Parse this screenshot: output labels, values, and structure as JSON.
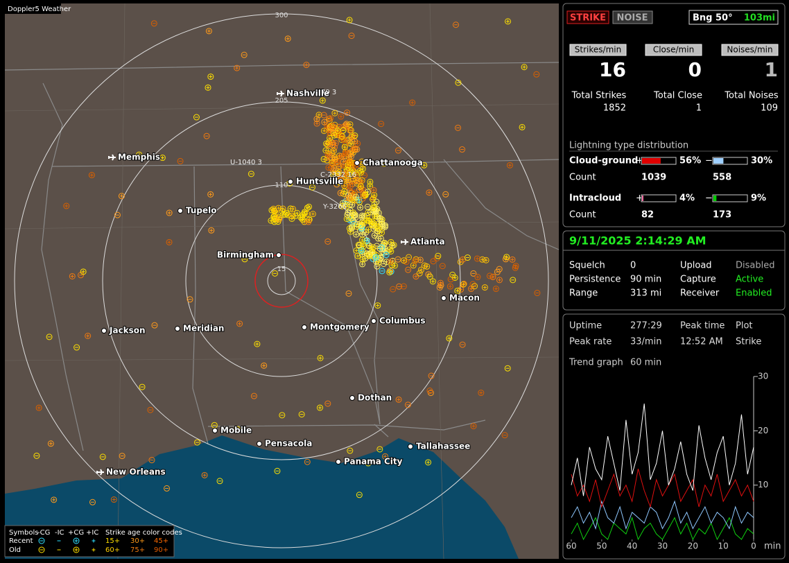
{
  "map": {
    "brand": "Doppler5 Weather",
    "range_labels": [
      "300",
      "205",
      "110",
      "15"
    ],
    "cities": [
      "Nashville",
      "Memphis",
      "Chattanooga",
      "Huntsville",
      "Tupelo",
      "Atlanta",
      "Birmingham",
      "Macon",
      "Jackson",
      "Meridian",
      "Montgomery",
      "Columbus",
      "Dothan",
      "Mobile",
      "Pensacola",
      "Panama City",
      "Tallahassee",
      "New Orleans"
    ],
    "track_labels": [
      "79 3",
      "U-1040 3",
      "C-2332 16",
      "Y-3266"
    ],
    "legend": {
      "symbols_label": "Symbols",
      "symbol_types": [
        "-CG",
        "-IC",
        "+CG",
        "+IC"
      ],
      "age_title": "Strike age color codes",
      "rows": [
        "Recent",
        "Old"
      ],
      "ages": [
        [
          "15+",
          "30+",
          "45+"
        ],
        [
          "60+",
          "75+",
          "90+"
        ]
      ]
    }
  },
  "status": {
    "strike_button": "STRIKE",
    "noise_button": "NOISE",
    "bearing": "Bng 50°",
    "distance": "103mi",
    "rate_headers": [
      "Strikes/min",
      "Close/min",
      "Noises/min"
    ],
    "rates": [
      16,
      0,
      1
    ],
    "total_labels": [
      "Total Strikes",
      "Total Close",
      "Total Noises"
    ],
    "totals": [
      1852,
      1,
      109
    ]
  },
  "distribution": {
    "title": "Lightning type distribution",
    "rows": [
      {
        "name": "Cloud-ground",
        "signs": [
          "+",
          "−"
        ],
        "values": [
          56,
          30
        ],
        "value_labels": [
          "56%",
          "30%"
        ],
        "colors": [
          "#e00000",
          "#9fd0ff"
        ],
        "count_label": "Count",
        "counts": [
          1039,
          558
        ]
      },
      {
        "name": "Intracloud",
        "signs": [
          "+",
          "−"
        ],
        "values": [
          4,
          9
        ],
        "value_labels": [
          "4%",
          "9%"
        ],
        "colors": [
          "#ff6fa8",
          "#00cc00"
        ],
        "count_label": "Count",
        "counts": [
          82,
          173
        ]
      }
    ]
  },
  "clock": {
    "datetime": "9/11/2025 2:14:29 AM",
    "rows": [
      [
        "Squelch",
        "0",
        "Upload",
        "Disabled"
      ],
      [
        "Persistence",
        "90 min",
        "Capture",
        "Active"
      ],
      [
        "Range",
        "313 mi",
        "Receiver",
        "Enabled"
      ]
    ]
  },
  "trend": {
    "stats": [
      [
        "Uptime",
        "277:29",
        "Peak time",
        "Plot"
      ],
      [
        "Peak rate",
        "33/min",
        "12:52 AM",
        "Strike"
      ]
    ],
    "graph_label": "Trend graph",
    "graph_span": "60 min",
    "chart": {
      "type": "line",
      "x": [
        60,
        58,
        56,
        54,
        52,
        50,
        48,
        46,
        44,
        42,
        40,
        38,
        36,
        34,
        32,
        30,
        28,
        26,
        24,
        22,
        20,
        18,
        16,
        14,
        12,
        10,
        8,
        6,
        4,
        2,
        0
      ],
      "xlim": [
        60,
        0
      ],
      "xticks": [
        60,
        50,
        40,
        30,
        20,
        10,
        0
      ],
      "x_unit": "min",
      "ylim": [
        0,
        30
      ],
      "yticks": [
        10,
        20,
        30
      ],
      "series": [
        {
          "color": "#ffffff",
          "values": [
            10,
            15,
            8,
            17,
            13,
            11,
            19,
            14,
            9,
            22,
            12,
            16,
            25,
            11,
            14,
            20,
            10,
            13,
            18,
            12,
            9,
            21,
            15,
            11,
            16,
            19,
            10,
            14,
            23,
            12,
            17
          ]
        },
        {
          "color": "#e01010",
          "values": [
            12,
            8,
            10,
            7,
            11,
            6,
            9,
            12,
            8,
            10,
            7,
            13,
            9,
            6,
            11,
            8,
            10,
            12,
            7,
            9,
            11,
            6,
            10,
            8,
            12,
            7,
            9,
            11,
            8,
            10,
            7
          ]
        },
        {
          "color": "#8fc8ff",
          "values": [
            4,
            6,
            3,
            5,
            2,
            7,
            4,
            3,
            6,
            2,
            5,
            4,
            3,
            6,
            5,
            2,
            4,
            7,
            3,
            5,
            2,
            4,
            6,
            3,
            5,
            4,
            2,
            6,
            3,
            5,
            4
          ]
        },
        {
          "color": "#10d010",
          "values": [
            1,
            3,
            0,
            2,
            4,
            1,
            0,
            3,
            2,
            1,
            4,
            0,
            2,
            3,
            1,
            0,
            2,
            4,
            1,
            3,
            0,
            2,
            1,
            3,
            0,
            2,
            4,
            1,
            0,
            2,
            1
          ]
        }
      ]
    }
  }
}
